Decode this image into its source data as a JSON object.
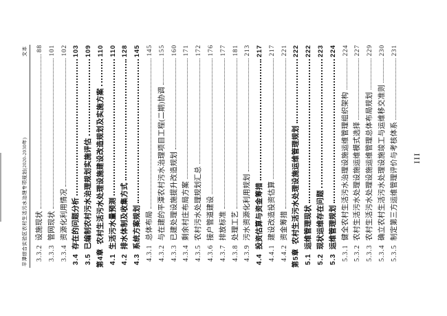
{
  "header": {
    "running_title": "平潭综合实验区农村生活污水治理专项规划(2020-2030年)",
    "right_label": "文本"
  },
  "footer": {
    "page_number": "III"
  },
  "toc": {
    "entries": [
      {
        "number": "3.3.2",
        "title": "设施现状",
        "page": "88",
        "level": 2,
        "bold": false
      },
      {
        "number": "3.3.3",
        "title": "管网现状",
        "page": "101",
        "level": 2,
        "bold": false
      },
      {
        "number": "3.3.4",
        "title": "资源化利用情况",
        "page": "102",
        "level": 2,
        "bold": false
      },
      {
        "number": "3.4",
        "title": "存在的问题分析",
        "page": "103",
        "level": 1,
        "bold": true
      },
      {
        "number": "3.5",
        "title": "已编制农村污水治理规划实施评估",
        "page": "109",
        "level": 1,
        "bold": true
      },
      {
        "number": "第4章",
        "title": "农村生活污水处理设施建设改造规划及实施方案",
        "page": "110",
        "level": 0,
        "bold": true
      },
      {
        "number": "4.1",
        "title": "生活污水量预测",
        "page": "110",
        "level": 1,
        "bold": true
      },
      {
        "number": "4.2",
        "title": "排水体制及收集方式",
        "page": "128",
        "level": 1,
        "bold": true
      },
      {
        "number": "4.3",
        "title": "系统方案规划",
        "page": "145",
        "level": 1,
        "bold": true
      },
      {
        "number": "4.3.1",
        "title": "总体布局",
        "page": "145",
        "level": 2,
        "bold": false
      },
      {
        "number": "4.3.2",
        "title": "与在建的平潭农村污水治理项目工程(二期)协调",
        "page": "155",
        "level": 2,
        "bold": false
      },
      {
        "number": "4.3.3",
        "title": "已建处理设施提升改造规划",
        "page": "160",
        "level": 2,
        "bold": false
      },
      {
        "number": "4.3.4",
        "title": "剩余村庄布局方案",
        "page": "171",
        "level": 2,
        "bold": false
      },
      {
        "number": "4.3.5",
        "title": "农村污水处理规划汇总",
        "page": "172",
        "level": 2,
        "bold": false
      },
      {
        "number": "4.3.6",
        "title": "接户管道建设",
        "page": "176",
        "level": 2,
        "bold": false
      },
      {
        "number": "4.3.7",
        "title": "排放标准",
        "page": "177",
        "level": 2,
        "bold": false
      },
      {
        "number": "4.3.8",
        "title": "处理工艺",
        "page": "181",
        "level": 2,
        "bold": false
      },
      {
        "number": "4.3.9",
        "title": "污水资源化利用规划",
        "page": "213",
        "level": 2,
        "bold": false
      },
      {
        "number": "4.4",
        "title": "投资估算与资金筹措",
        "page": "217",
        "level": 1,
        "bold": true
      },
      {
        "number": "4.4.1",
        "title": "建设改造投资估算",
        "page": "217",
        "level": 2,
        "bold": false
      },
      {
        "number": "4.4.2",
        "title": "资金筹措",
        "page": "221",
        "level": 2,
        "bold": false
      },
      {
        "number": "第5章",
        "title": "农村生活污水处理设施运维管理规划",
        "page": "222",
        "level": 0,
        "bold": true
      },
      {
        "number": "5.1",
        "title": "运维管理现状",
        "page": "222",
        "level": 1,
        "bold": true
      },
      {
        "number": "5.2",
        "title": "现状运维存在问题",
        "page": "223",
        "level": 1,
        "bold": true
      },
      {
        "number": "5.3",
        "title": "运维管理规划",
        "page": "224",
        "level": 1,
        "bold": true
      },
      {
        "number": "5.3.1",
        "title": "健全农村生活污水治理设施运维管理组织架构",
        "page": "224",
        "level": 2,
        "bold": false
      },
      {
        "number": "5.3.2",
        "title": "农村生活污水处理设施运维模式选择",
        "page": "227",
        "level": 2,
        "bold": false
      },
      {
        "number": "5.3.3",
        "title": "农村生活污水处理设施运维管理总体布局规划",
        "page": "229",
        "level": 2,
        "bold": false
      },
      {
        "number": "5.3.4",
        "title": "确立农村生活污水处理设施竣工与运维移交准则",
        "page": "230",
        "level": 2,
        "bold": false
      },
      {
        "number": "5.3.5",
        "title": "制定第三方运维管理评价与考核体系",
        "page": "231",
        "level": 2,
        "bold": false
      }
    ]
  },
  "colors": {
    "ink": "#1f1f1f",
    "leader_dots": "#4a4a4a",
    "header_rule": "#3a3a3a",
    "background": "#ffffff"
  }
}
